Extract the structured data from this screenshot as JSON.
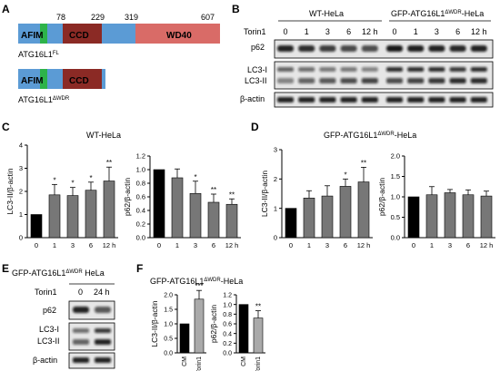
{
  "figure": {
    "panel_A": {
      "letter": "A",
      "fl_label_main": "ATG16L1",
      "fl_label_sup": "FL",
      "dwdr_label_main": "ATG16L1",
      "dwdr_label_sup": "ΔWDR",
      "positions": [
        "78",
        "229",
        "319",
        "607"
      ],
      "domains": {
        "afim": "AFIM",
        "ccd": "CCD",
        "wd40": "WD40"
      },
      "colors": {
        "backbone": "#5b9bd5",
        "afim_tag": "#2db34a",
        "ccd": "#8b2a25",
        "wd40": "#d96b67"
      }
    },
    "panel_B": {
      "letter": "B",
      "group1": "WT-HeLa",
      "group2_main": "GFP-ATG16L1",
      "group2_sup": "ΔWDR",
      "group2_suffix": "-HeLa",
      "treatment_label": "Torin1",
      "lanes": [
        "0",
        "1",
        "3",
        "6",
        "12 h",
        "0",
        "1",
        "3",
        "6",
        "12 h"
      ],
      "rows": [
        "p62",
        "LC3-I",
        "LC3-II",
        "β-actin"
      ]
    },
    "panel_C": {
      "letter": "C",
      "title": "WT-HeLa"
    },
    "panel_D": {
      "letter": "D",
      "title_main": "GFP-ATG16L1",
      "title_sup": "ΔWDR",
      "title_suffix": "-HeLa"
    },
    "panel_E": {
      "letter": "E",
      "title_main": "GFP-ATG16L1",
      "title_sup": "ΔWDR",
      "title_suffix": " HeLa",
      "treatment_label": "Torin1",
      "lanes": [
        "0",
        "24 h"
      ],
      "rows": [
        "p62",
        "LC3-I",
        "LC3-II",
        "β-actin"
      ]
    },
    "panel_F": {
      "letter": "F",
      "title_main": "GFP-ATG16L1",
      "title_sup": "ΔWDR",
      "title_suffix": "-HeLa"
    }
  },
  "chart_data": [
    {
      "id": "C1",
      "type": "bar",
      "categories": [
        "0",
        "1",
        "3",
        "6",
        "12 h"
      ],
      "values": [
        1.0,
        1.85,
        1.82,
        2.05,
        2.45
      ],
      "errors": [
        0,
        0.45,
        0.35,
        0.35,
        0.6
      ],
      "significance": [
        "",
        "*",
        "*",
        "*",
        "**"
      ],
      "ylabel": "LC3-II/β-actin",
      "ylim": [
        0,
        4
      ],
      "yticks": [
        0,
        1,
        2,
        3,
        4
      ],
      "bar_colors": [
        "#000000",
        "#777777",
        "#777777",
        "#777777",
        "#777777"
      ]
    },
    {
      "id": "C2",
      "type": "bar",
      "categories": [
        "0",
        "1",
        "3",
        "6",
        "12 h"
      ],
      "values": [
        1.0,
        0.88,
        0.65,
        0.52,
        0.49
      ],
      "errors": [
        0,
        0.13,
        0.18,
        0.12,
        0.08
      ],
      "significance": [
        "",
        "",
        "*",
        "**",
        "**"
      ],
      "ylabel": "p62/β-actin",
      "ylim": [
        0,
        1.2
      ],
      "yticks": [
        0.0,
        0.2,
        0.4,
        0.6,
        0.8,
        1.0,
        1.2
      ],
      "bar_colors": [
        "#000000",
        "#777777",
        "#777777",
        "#777777",
        "#777777"
      ]
    },
    {
      "id": "D1",
      "type": "bar",
      "categories": [
        "0",
        "1",
        "3",
        "6",
        "12 h"
      ],
      "values": [
        1.0,
        1.35,
        1.42,
        1.75,
        1.9
      ],
      "errors": [
        0,
        0.25,
        0.35,
        0.25,
        0.5
      ],
      "significance": [
        "",
        "",
        "",
        "*",
        "**"
      ],
      "ylabel": "LC3-II/β-actin",
      "ylim": [
        0,
        3
      ],
      "yticks": [
        0,
        1,
        2,
        3
      ],
      "bar_colors": [
        "#000000",
        "#777777",
        "#777777",
        "#777777",
        "#777777"
      ]
    },
    {
      "id": "D2",
      "type": "bar",
      "categories": [
        "0",
        "1",
        "3",
        "6",
        "12 h"
      ],
      "values": [
        1.0,
        1.05,
        1.1,
        1.05,
        1.02
      ],
      "errors": [
        0,
        0.2,
        0.08,
        0.12,
        0.12
      ],
      "significance": [
        "",
        "",
        "",
        "",
        ""
      ],
      "ylabel": "p62/β-actin",
      "ylim": [
        0,
        2.0
      ],
      "yticks": [
        0.0,
        0.5,
        1.0,
        1.5,
        2.0
      ],
      "bar_colors": [
        "#000000",
        "#777777",
        "#777777",
        "#777777",
        "#777777"
      ]
    },
    {
      "id": "F1",
      "type": "bar",
      "categories": [
        "CM",
        "Torin1"
      ],
      "values": [
        1.0,
        1.85
      ],
      "errors": [
        0,
        0.3
      ],
      "significance": [
        "",
        "***"
      ],
      "ylabel": "LC3-II/β-actin",
      "ylim": [
        0,
        2.0
      ],
      "yticks": [
        0.0,
        0.5,
        1.0,
        1.5,
        2.0
      ],
      "bar_colors": [
        "#000000",
        "#aaaaaa"
      ]
    },
    {
      "id": "F2",
      "type": "bar",
      "categories": [
        "CM",
        "Torin1"
      ],
      "values": [
        1.0,
        0.72
      ],
      "errors": [
        0,
        0.15
      ],
      "significance": [
        "",
        "**"
      ],
      "ylabel": "p62/β-actin",
      "ylim": [
        0,
        1.2
      ],
      "yticks": [
        0.0,
        0.2,
        0.4,
        0.6,
        0.8,
        1.0,
        1.2
      ],
      "bar_colors": [
        "#000000",
        "#aaaaaa"
      ]
    }
  ]
}
